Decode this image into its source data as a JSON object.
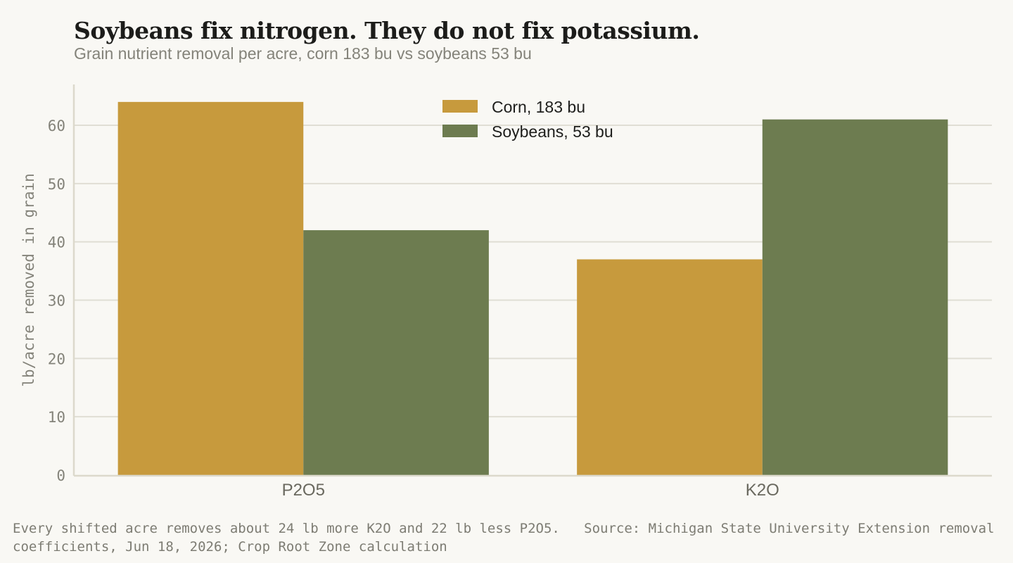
{
  "chart_data": {
    "type": "bar",
    "title": "Soybeans fix nitrogen. They do not fix potassium.",
    "subtitle": "Grain nutrient removal per acre, corn 183 bu vs soybeans 53 bu",
    "categories": [
      "P2O5",
      "K2O"
    ],
    "series": [
      {
        "name": "Corn, 183 bu",
        "values": [
          64,
          37
        ],
        "color": "#c79a3d"
      },
      {
        "name": "Soybeans, 53 bu",
        "values": [
          42,
          61
        ],
        "color": "#6d7c50"
      }
    ],
    "ylabel": "lb/acre removed in grain",
    "xlabel": "",
    "ylim": [
      0,
      67
    ],
    "yticks": [
      0,
      10,
      20,
      30,
      40,
      50,
      60
    ],
    "grid": true,
    "legend_position": "top-center"
  },
  "footnote": "Every shifted acre removes about 24 lb more K2O and 22 lb less P2O5.   Source: Michigan State University Extension removal coefficients, Jun 18, 2026; Crop Root Zone calculation"
}
